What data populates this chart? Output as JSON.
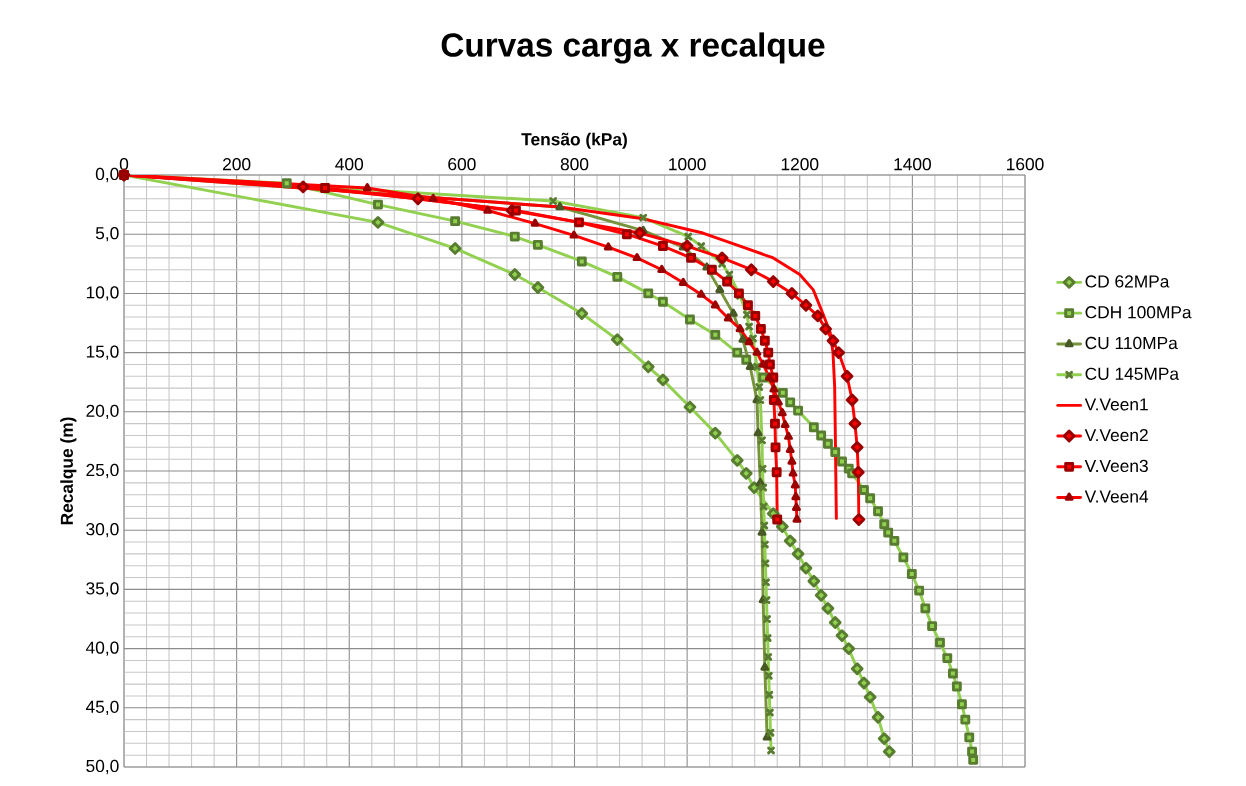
{
  "chart_data": {
    "type": "line",
    "title": "Curvas carga x recalque",
    "xlabel": "Tensão (kPa)",
    "ylabel": "Recalque (m)",
    "xlim": [
      0,
      1600
    ],
    "xticks": [
      0,
      200,
      400,
      600,
      800,
      1000,
      1200,
      1400,
      1600
    ],
    "ylim": [
      50,
      0
    ],
    "yticks": [
      {
        "value": 0,
        "label": "0,0"
      },
      {
        "value": 5,
        "label": "5,0"
      },
      {
        "value": 10,
        "label": "10,0"
      },
      {
        "value": 15,
        "label": "15,0"
      },
      {
        "value": 20,
        "label": "20,0"
      },
      {
        "value": 25,
        "label": "25,0"
      },
      {
        "value": 30,
        "label": "30,0"
      },
      {
        "value": 35,
        "label": "35,0"
      },
      {
        "value": 40,
        "label": "40,0"
      },
      {
        "value": 45,
        "label": "45,0"
      },
      {
        "value": 50,
        "label": "50,0"
      }
    ],
    "grid": true,
    "legend": "right",
    "line_style": "solid",
    "series": [
      {
        "name": "CD 62MPa",
        "color": "#92d050",
        "marker": "diamond",
        "x": [
          0,
          451,
          588,
          694,
          735,
          813,
          876,
          931,
          957,
          1005,
          1050,
          1089,
          1105,
          1119,
          1153,
          1169,
          1183,
          1197,
          1211,
          1225,
          1238,
          1250,
          1263,
          1275,
          1287,
          1302,
          1314,
          1325,
          1339,
          1350,
          1359
        ],
        "values": [
          0,
          4.0,
          6.2,
          8.4,
          9.5,
          11.7,
          13.9,
          16.2,
          17.3,
          19.6,
          21.8,
          24.1,
          25.2,
          26.4,
          28.6,
          29.7,
          30.9,
          32.0,
          33.2,
          34.3,
          35.5,
          36.6,
          37.8,
          38.9,
          40.0,
          41.7,
          42.9,
          44.1,
          45.8,
          47.6,
          48.7
        ]
      },
      {
        "name": "CDH 100MPa",
        "color": "#92d050",
        "marker": "square",
        "x": [
          0,
          289,
          451,
          588,
          694,
          735,
          813,
          876,
          931,
          957,
          1005,
          1050,
          1089,
          1105,
          1135,
          1170,
          1183,
          1197,
          1225,
          1238,
          1250,
          1263,
          1275,
          1287,
          1293,
          1314,
          1325,
          1339,
          1350,
          1357,
          1368,
          1384,
          1399,
          1412,
          1423,
          1435,
          1449,
          1462,
          1472,
          1479,
          1488,
          1494,
          1501,
          1506,
          1508
        ],
        "values": [
          0,
          0.7,
          2.5,
          3.9,
          5.2,
          5.9,
          7.3,
          8.6,
          10.0,
          10.7,
          12.2,
          13.5,
          15.0,
          15.6,
          17.1,
          18.4,
          19.2,
          19.9,
          21.3,
          22.0,
          22.7,
          23.4,
          24.2,
          24.8,
          25.2,
          26.6,
          27.3,
          28.4,
          29.5,
          30.2,
          30.9,
          32.3,
          33.7,
          35.1,
          36.6,
          38.1,
          39.5,
          40.8,
          42.1,
          43.2,
          44.7,
          46.0,
          47.5,
          48.7,
          49.4
        ]
      },
      {
        "name": "CU 110MPa",
        "color": "#77933c",
        "marker": "triangle",
        "x": [
          0,
          774,
          922,
          993,
          1035,
          1058,
          1082,
          1099,
          1112,
          1124,
          1126,
          1130,
          1133,
          1135,
          1138,
          1142
        ],
        "values": [
          0,
          2.7,
          4.7,
          6.1,
          7.8,
          9.7,
          11.7,
          13.9,
          16.2,
          19.0,
          21.8,
          26.0,
          30.2,
          35.9,
          41.6,
          47.5
        ]
      },
      {
        "name": "CU 145MPa",
        "color": "#92d050",
        "marker": "cross",
        "x": [
          0,
          762,
          922,
          1002,
          1025,
          1062,
          1075,
          1094,
          1106,
          1110,
          1117,
          1124,
          1128,
          1130,
          1133,
          1134,
          1135,
          1136,
          1137,
          1138,
          1139,
          1140,
          1141,
          1142,
          1143,
          1144,
          1145,
          1146,
          1147,
          1148,
          1149
        ],
        "values": [
          0,
          2.2,
          3.6,
          5.2,
          6.0,
          7.5,
          8.4,
          10.2,
          11.8,
          12.8,
          13.8,
          16.2,
          17.9,
          19.0,
          22.4,
          24.8,
          26.4,
          28.0,
          29.6,
          31.2,
          32.8,
          34.4,
          35.9,
          37.5,
          39.1,
          40.7,
          42.3,
          43.9,
          45.4,
          47.1,
          48.6
        ]
      },
      {
        "name": "V.Veen1",
        "color": "#ff0000",
        "marker": "none",
        "x": [
          0,
          774,
          922,
          1028,
          1099,
          1153,
          1200,
          1224,
          1241,
          1254,
          1259,
          1262,
          1263,
          1264,
          1265
        ],
        "values": [
          0,
          2.7,
          3.7,
          4.9,
          6.1,
          7.0,
          8.4,
          9.7,
          11.7,
          13.3,
          15.0,
          17.9,
          21.3,
          25.2,
          29.0
        ]
      },
      {
        "name": "V.Veen2",
        "color": "#ff0000",
        "marker": "diamond",
        "x": [
          0,
          318,
          522,
          689,
          916,
          1000,
          1062,
          1114,
          1153,
          1186,
          1211,
          1232,
          1246,
          1259,
          1269,
          1284,
          1293,
          1298,
          1302,
          1304,
          1305
        ],
        "values": [
          0,
          1.0,
          2.0,
          3.0,
          4.9,
          6.0,
          7.0,
          8.0,
          9.0,
          10.0,
          11.0,
          11.9,
          13.0,
          14.0,
          15.0,
          17.0,
          19.0,
          21.0,
          23.0,
          25.1,
          29.1
        ]
      },
      {
        "name": "V.Veen3",
        "color": "#ff0000",
        "marker": "square",
        "x": [
          0,
          357,
          696,
          808,
          893,
          957,
          1007,
          1044,
          1071,
          1092,
          1108,
          1121,
          1131,
          1138,
          1144,
          1147,
          1153,
          1154,
          1156,
          1157,
          1159,
          1160
        ],
        "values": [
          0,
          1.1,
          3.0,
          4.0,
          5.0,
          6.0,
          7.0,
          8.0,
          9.0,
          10.0,
          11.0,
          11.9,
          13.0,
          14.0,
          15.0,
          16.0,
          17.1,
          19.0,
          21.0,
          23.0,
          25.1,
          29.1
        ]
      },
      {
        "name": "V.Veen4",
        "color": "#ff0000",
        "marker": "triangle",
        "x": [
          0,
          432,
          549,
          646,
          730,
          799,
          860,
          911,
          955,
          993,
          1025,
          1050,
          1073,
          1094,
          1110,
          1124,
          1135,
          1146,
          1154,
          1162,
          1169,
          1174,
          1180,
          1183,
          1186,
          1188,
          1192,
          1193,
          1194,
          1195
        ],
        "values": [
          0,
          1.1,
          2.0,
          3.0,
          4.1,
          5.1,
          6.1,
          7.0,
          8.0,
          9.1,
          10.1,
          11.0,
          12.1,
          13.0,
          14.1,
          15.0,
          16.0,
          17.1,
          18.1,
          19.2,
          20.1,
          21.1,
          22.1,
          23.2,
          24.2,
          25.2,
          26.2,
          27.2,
          28.1,
          29.1
        ]
      }
    ]
  }
}
